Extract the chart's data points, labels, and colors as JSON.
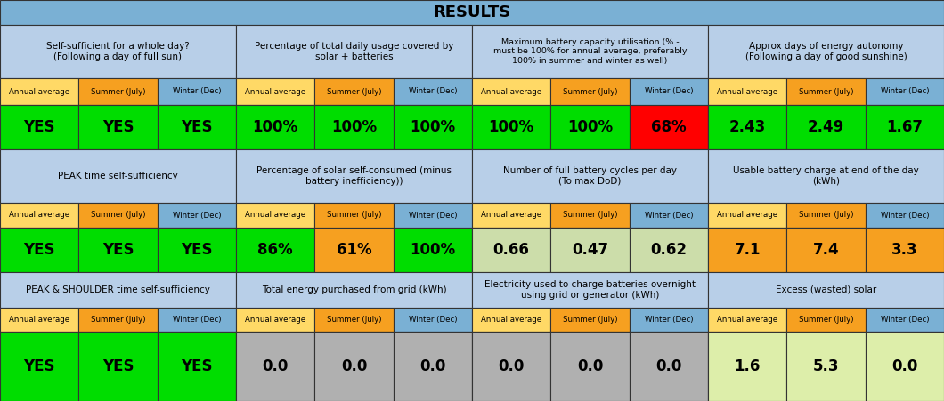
{
  "title": "RESULTS",
  "title_bg": "#7ab0d4",
  "header_bg": "#b8cfe8",
  "col_header_annual": "#ffd966",
  "col_header_summer": "#f6a020",
  "col_header_winter": "#7ab0d4",
  "sections": [
    {
      "title": "Self-sufficient for a whole day?\n(Following a day of full sun)",
      "values": [
        "YES",
        "YES",
        "YES"
      ],
      "value_colors": [
        "#00dd00",
        "#00dd00",
        "#00dd00"
      ],
      "value_bg": "unified"
    },
    {
      "title": "Percentage of total daily usage covered by\nsolar + batteries",
      "values": [
        "100%",
        "100%",
        "100%"
      ],
      "value_colors": [
        "#00dd00",
        "#00dd00",
        "#00dd00"
      ],
      "value_bg": "unified"
    },
    {
      "title": "Maximum battery capacity utilisation (% -\nmust be 100% for annual average, preferably\n100% in summer and winter as well)",
      "values": [
        "100%",
        "100%",
        "68%"
      ],
      "value_colors": [
        "#00dd00",
        "#00dd00",
        "#ff0000"
      ],
      "value_bg": "split"
    },
    {
      "title": "Approx days of energy autonomy\n(Following a day of good sunshine)",
      "values": [
        "2.43",
        "2.49",
        "1.67"
      ],
      "value_colors": [
        "#00dd00",
        "#00dd00",
        "#00dd00"
      ],
      "value_bg": "unified"
    },
    {
      "title": "PEAK time self-sufficiency",
      "values": [
        "YES",
        "YES",
        "YES"
      ],
      "value_colors": [
        "#00dd00",
        "#00dd00",
        "#00dd00"
      ],
      "value_bg": "unified"
    },
    {
      "title": "Percentage of solar self-consumed (minus\nbattery inefficiency))",
      "values": [
        "86%",
        "61%",
        "100%"
      ],
      "value_colors": [
        "#00dd00",
        "#f6a020",
        "#00dd00"
      ],
      "value_bg": "split"
    },
    {
      "title": "Number of full battery cycles per day\n(To max DoD)",
      "values": [
        "0.66",
        "0.47",
        "0.62"
      ],
      "value_colors": [
        "#ccddaa",
        "#ccddaa",
        "#ccddaa"
      ],
      "value_bg": "unified"
    },
    {
      "title": "Usable battery charge at end of the day\n(kWh)",
      "values": [
        "7.1",
        "7.4",
        "3.3"
      ],
      "value_colors": [
        "#f6a020",
        "#f6a020",
        "#f6a020"
      ],
      "value_bg": "unified"
    },
    {
      "title": "PEAK & SHOULDER time self-sufficiency",
      "values": [
        "YES",
        "YES",
        "YES"
      ],
      "value_colors": [
        "#00dd00",
        "#00dd00",
        "#00dd00"
      ],
      "value_bg": "unified"
    },
    {
      "title": "Total energy purchased from grid (kWh)",
      "values": [
        "0.0",
        "0.0",
        "0.0"
      ],
      "value_colors": [
        "#b0b0b0",
        "#b0b0b0",
        "#b0b0b0"
      ],
      "value_bg": "unified"
    },
    {
      "title": "Electricity used to charge batteries overnight\nusing grid or generator (kWh)",
      "values": [
        "0.0",
        "0.0",
        "0.0"
      ],
      "value_colors": [
        "#b0b0b0",
        "#b0b0b0",
        "#b0b0b0"
      ],
      "value_bg": "unified"
    },
    {
      "title": "Excess (wasted) solar",
      "values": [
        "1.6",
        "5.3",
        "0.0"
      ],
      "value_colors": [
        "#ddeeaa",
        "#ddeeaa",
        "#ddeeaa"
      ],
      "value_bg": "unified"
    }
  ],
  "col_headers": [
    "Annual average",
    "Summer (July)",
    "Winter (Dec)"
  ]
}
